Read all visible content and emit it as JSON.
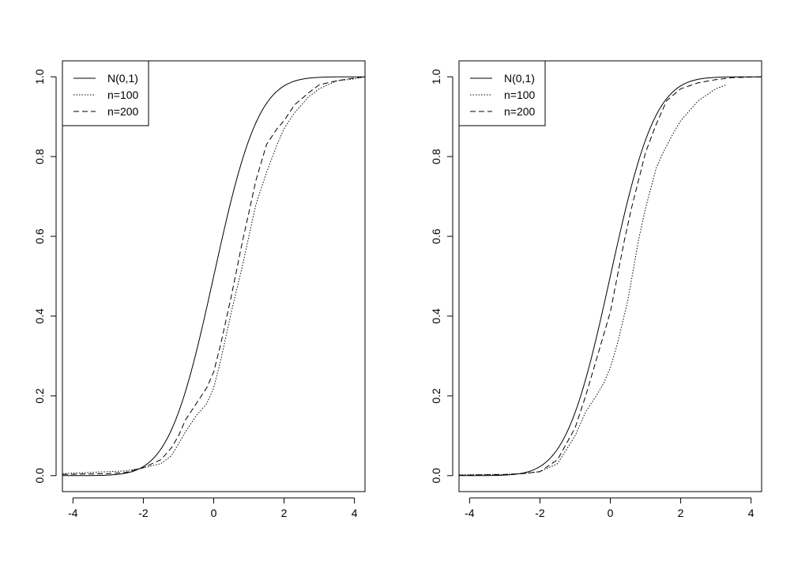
{
  "chart_data": [
    {
      "type": "line",
      "title": "",
      "xlabel": "",
      "ylabel": "",
      "xlim": [
        -4.3,
        4.3
      ],
      "ylim": [
        -0.04,
        1.04
      ],
      "xticks": [
        -4,
        -2,
        0,
        2,
        4
      ],
      "yticks": [
        0.0,
        0.2,
        0.4,
        0.6,
        0.8,
        1.0
      ],
      "xtick_labels": [
        "-4",
        "-2",
        "0",
        "2",
        "4"
      ],
      "ytick_labels": [
        "0.0",
        "0.2",
        "0.4",
        "0.6",
        "0.8",
        "1.0"
      ],
      "grid": false,
      "legend_position": "top-left",
      "legend": [
        "N(0,1)",
        "n=100",
        "n=200"
      ],
      "series": [
        {
          "name": "N(0,1)",
          "style": "solid",
          "mean": 0,
          "sd": 1,
          "x": [
            -4.3,
            4.3
          ]
        },
        {
          "name": "n=100",
          "style": "dotted",
          "x": [
            -4.3,
            -3.0,
            -2.5,
            -2.0,
            -1.5,
            -1.2,
            -1.0,
            -0.8,
            -0.5,
            -0.2,
            0.0,
            0.2,
            0.5,
            0.8,
            1.0,
            1.2,
            1.5,
            1.8,
            2.0,
            2.3,
            2.7,
            3.0,
            3.5,
            4.0,
            4.3
          ],
          "y": [
            0.005,
            0.01,
            0.012,
            0.02,
            0.03,
            0.05,
            0.08,
            0.11,
            0.15,
            0.18,
            0.22,
            0.29,
            0.41,
            0.52,
            0.6,
            0.68,
            0.76,
            0.83,
            0.87,
            0.91,
            0.95,
            0.97,
            0.99,
            0.995,
            1.0
          ]
        },
        {
          "name": "n=200",
          "style": "dashed",
          "x": [
            -4.3,
            -3.0,
            -2.5,
            -2.0,
            -1.5,
            -1.2,
            -1.0,
            -0.8,
            -0.5,
            -0.2,
            0.0,
            0.2,
            0.5,
            0.8,
            1.0,
            1.2,
            1.5,
            1.8,
            2.0,
            2.3,
            2.7,
            3.0,
            3.5,
            4.0,
            4.3
          ],
          "y": [
            0.003,
            0.005,
            0.008,
            0.02,
            0.04,
            0.07,
            0.1,
            0.14,
            0.18,
            0.22,
            0.26,
            0.33,
            0.45,
            0.58,
            0.66,
            0.74,
            0.83,
            0.87,
            0.89,
            0.93,
            0.96,
            0.98,
            0.99,
            0.997,
            1.0
          ]
        }
      ]
    },
    {
      "type": "line",
      "title": "",
      "xlabel": "",
      "ylabel": "",
      "xlim": [
        -4.3,
        4.3
      ],
      "ylim": [
        -0.04,
        1.04
      ],
      "xticks": [
        -4,
        -2,
        0,
        2,
        4
      ],
      "yticks": [
        0.0,
        0.2,
        0.4,
        0.6,
        0.8,
        1.0
      ],
      "xtick_labels": [
        "-4",
        "-2",
        "0",
        "2",
        "4"
      ],
      "ytick_labels": [
        "0.0",
        "0.2",
        "0.4",
        "0.6",
        "0.8",
        "1.0"
      ],
      "grid": false,
      "legend_position": "top-left",
      "legend": [
        "N(0,1)",
        "n=100",
        "n=200"
      ],
      "series": [
        {
          "name": "N(0,1)",
          "style": "solid",
          "mean": 0,
          "sd": 1,
          "x": [
            -4.3,
            4.3
          ]
        },
        {
          "name": "n=100",
          "style": "dotted",
          "x": [
            -4.3,
            -3.0,
            -2.5,
            -2.0,
            -1.5,
            -1.0,
            -0.7,
            -0.4,
            -0.2,
            0.0,
            0.2,
            0.5,
            0.8,
            1.0,
            1.3,
            1.5,
            1.8,
            2.0,
            2.5,
            3.0,
            3.3
          ],
          "y": [
            0.002,
            0.003,
            0.005,
            0.01,
            0.03,
            0.1,
            0.16,
            0.2,
            0.23,
            0.27,
            0.33,
            0.44,
            0.59,
            0.67,
            0.77,
            0.81,
            0.86,
            0.89,
            0.94,
            0.97,
            0.98
          ]
        },
        {
          "name": "n=200",
          "style": "dashed",
          "x": [
            -4.3,
            -3.0,
            -2.5,
            -2.0,
            -1.5,
            -1.0,
            -0.7,
            -0.4,
            -0.2,
            0.0,
            0.2,
            0.4,
            0.6,
            0.8,
            1.0,
            1.3,
            1.6,
            2.0,
            2.5,
            3.0,
            3.5,
            4.3
          ],
          "y": [
            0.001,
            0.003,
            0.005,
            0.01,
            0.04,
            0.12,
            0.2,
            0.29,
            0.35,
            0.41,
            0.5,
            0.59,
            0.67,
            0.74,
            0.81,
            0.88,
            0.94,
            0.97,
            0.985,
            0.993,
            0.998,
            1.0
          ]
        }
      ]
    }
  ]
}
